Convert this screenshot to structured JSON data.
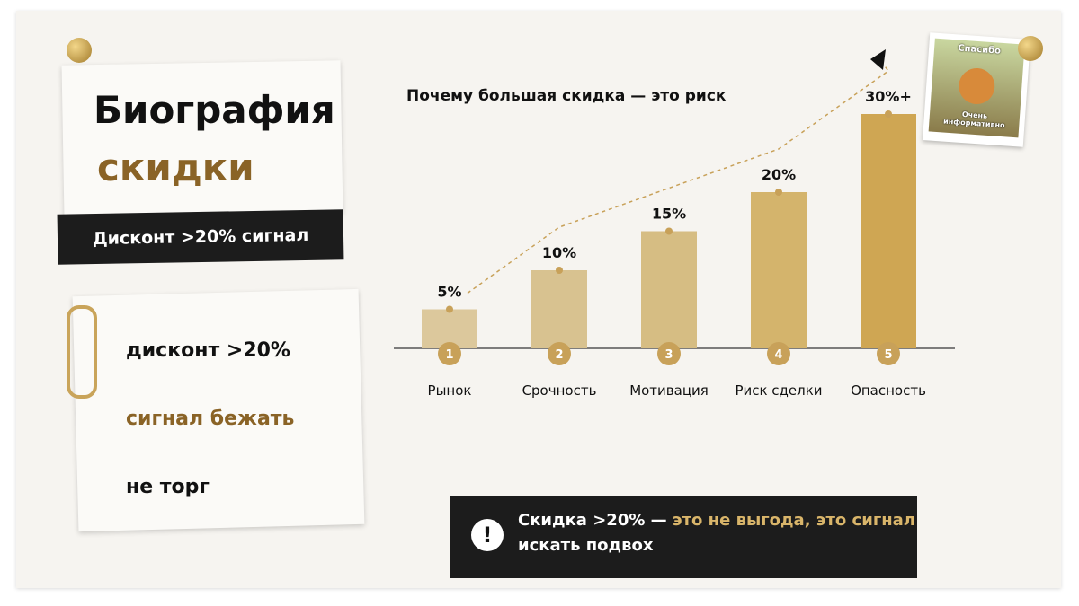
{
  "header": {
    "title_line1": "Биография",
    "title_line2": "скидки",
    "badge": "Дисконт >20% сигнал"
  },
  "notes": [
    "дисконт >20%",
    "сигнал бежать",
    "не торг"
  ],
  "meme": {
    "top": "Спасибо",
    "bottom": "Очень информативно"
  },
  "callout": {
    "part1": "Скидка >20% —",
    "part2": "это не выгода, это сигнал",
    "part3": "искать подвох",
    "icon": "!"
  },
  "chart_data": {
    "type": "bar",
    "title": "Почему большая скидка — это риск",
    "categories": [
      "Рынок",
      "Срочность",
      "Мотивация",
      "Риск сделки",
      "Опасность"
    ],
    "steps": [
      1,
      2,
      3,
      4,
      5
    ],
    "values": [
      5,
      10,
      15,
      20,
      30
    ],
    "value_labels": [
      "5%",
      "10%",
      "15%",
      "20%",
      "30%+"
    ],
    "colors": [
      "#dcc89c",
      "#d8c290",
      "#d6bd83",
      "#d4b46c",
      "#cfa653"
    ]
  }
}
